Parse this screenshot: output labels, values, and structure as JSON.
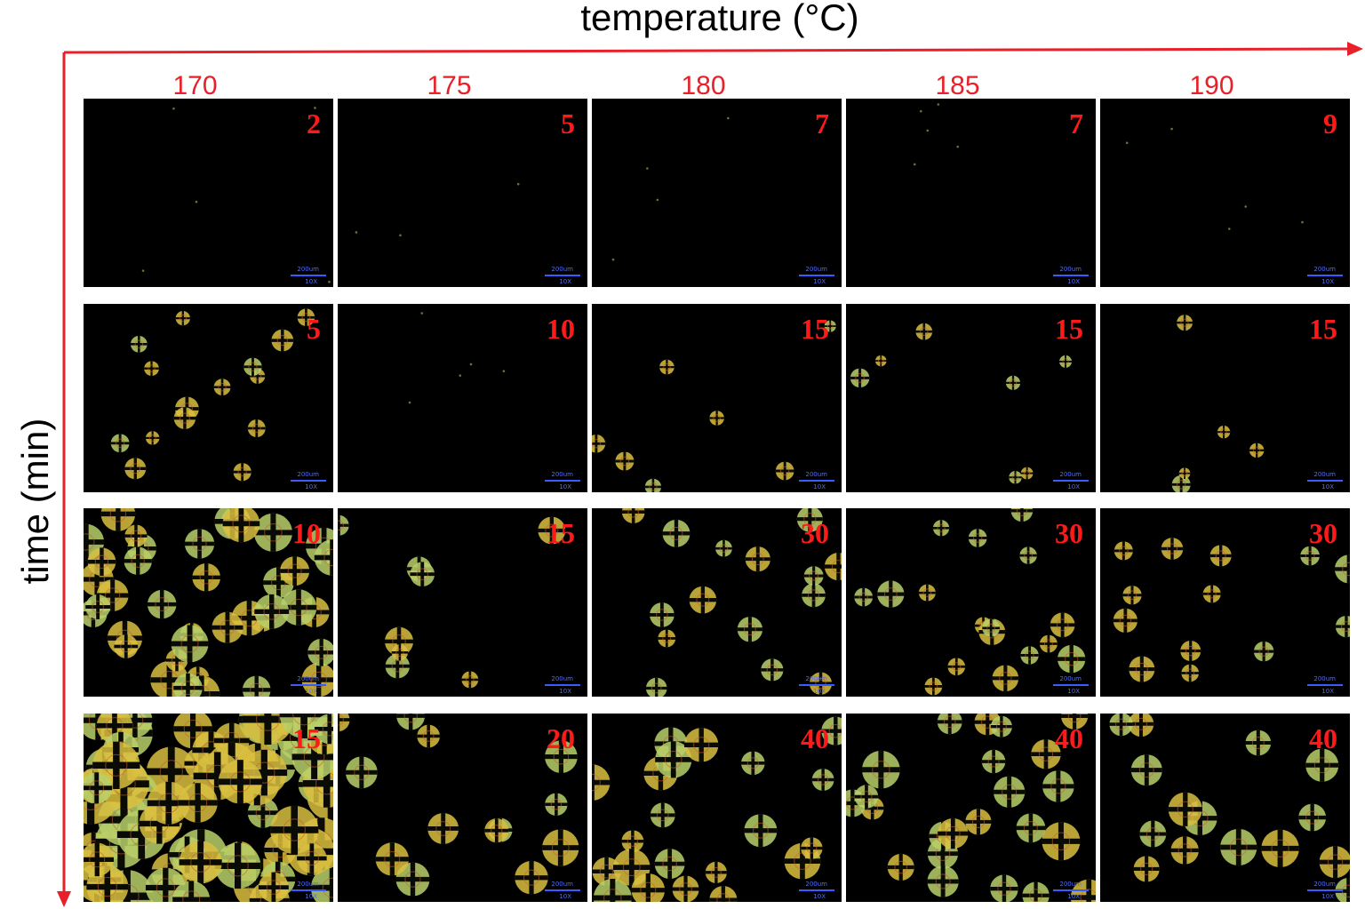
{
  "figure": {
    "x_axis_title": "temperature (°C)",
    "y_axis_title": "time (min)",
    "temperatures": [
      "170",
      "175",
      "180",
      "185",
      "190"
    ],
    "scale_bar_label": "200um",
    "magnification_label": "10X",
    "colors": {
      "axis": "#e8202a",
      "time_label": "#ff1a1a",
      "panel_background": "#000000",
      "scale_bar": "#3a5cff",
      "spherulite_green": "#b8d06a",
      "spherulite_yellow": "#d9c040"
    },
    "rows": [
      {
        "times": [
          "2",
          "5",
          "7",
          "7",
          "9"
        ],
        "coverage": [
          0.02,
          0.0,
          0.01,
          0.02,
          0.02
        ]
      },
      {
        "times": [
          "5",
          "10",
          "15",
          "15",
          "15"
        ],
        "coverage": [
          0.15,
          0.02,
          0.05,
          0.05,
          0.03
        ]
      },
      {
        "times": [
          "10",
          "15",
          "30",
          "30",
          "30"
        ],
        "coverage": [
          0.45,
          0.06,
          0.15,
          0.18,
          0.12
        ]
      },
      {
        "times": [
          "15",
          "20",
          "40",
          "40",
          "40"
        ],
        "coverage": [
          0.9,
          0.12,
          0.22,
          0.25,
          0.15
        ]
      }
    ]
  }
}
